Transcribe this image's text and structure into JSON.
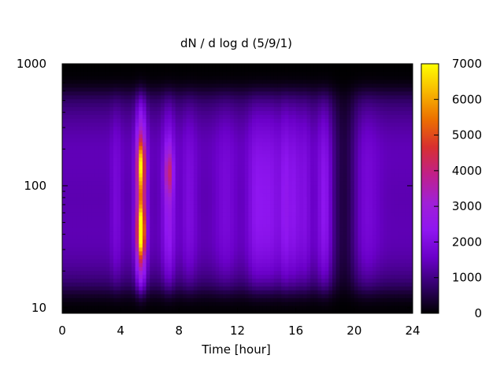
{
  "chart_data": {
    "type": "heatmap",
    "title": "dN / d log d (5/9/1)",
    "xlabel": "Time [hour]",
    "ylabel": "",
    "x_range": [
      0,
      24
    ],
    "y_range": [
      9,
      1000
    ],
    "y_scale": "log",
    "x_ticks": [
      0,
      4,
      8,
      12,
      16,
      20,
      24
    ],
    "x_tick_labels": [
      "0",
      "4",
      "8",
      "12",
      "16",
      "20",
      "24"
    ],
    "y_ticks": [
      10,
      100,
      1000
    ],
    "y_tick_labels": [
      "10",
      "100",
      "1000"
    ],
    "colorbar": {
      "range": [
        0,
        7000
      ],
      "ticks": [
        0,
        1000,
        2000,
        3000,
        4000,
        5000,
        6000,
        7000
      ],
      "tick_labels": [
        "0",
        "1000",
        "2000",
        "3000",
        "4000",
        "5000",
        "6000",
        "7000"
      ],
      "palette": [
        "#000000",
        "#33006b",
        "#6a00c8",
        "#8f16f0",
        "#a020d6",
        "#c0208a",
        "#d83030",
        "#ec7000",
        "#f8b800",
        "#ffff00"
      ]
    },
    "grid": false,
    "features": {
      "background_level": 500,
      "size_modes": [
        {
          "diameter": 25,
          "width_decades": 0.22,
          "amplitude": 400
        },
        {
          "diameter": 55,
          "width_decades": 0.3,
          "amplitude": 650
        },
        {
          "diameter": 220,
          "width_decades": 0.3,
          "amplitude": 800
        }
      ],
      "event_columns": [
        {
          "time": 3.7,
          "width_hours": 0.25,
          "amplitude": 500
        },
        {
          "time": 5.4,
          "width_hours": 0.25,
          "amplitude": 3200
        },
        {
          "time": 7.3,
          "width_hours": 0.3,
          "amplitude": 1200
        },
        {
          "time": 8.7,
          "width_hours": 0.35,
          "amplitude": 600
        },
        {
          "time": 11.2,
          "width_hours": 0.5,
          "amplitude": 500
        },
        {
          "time": 13.2,
          "width_hours": 0.4,
          "amplitude": 700
        },
        {
          "time": 14.2,
          "width_hours": 0.6,
          "amplitude": 900
        },
        {
          "time": 15.3,
          "width_hours": 0.25,
          "amplitude": 900
        },
        {
          "time": 15.9,
          "width_hours": 0.25,
          "amplitude": 800
        },
        {
          "time": 16.6,
          "width_hours": 0.3,
          "amplitude": 700
        },
        {
          "time": 18.0,
          "width_hours": 0.35,
          "amplitude": 1100
        },
        {
          "time": 20.8,
          "width_hours": 0.6,
          "amplitude": 500
        }
      ],
      "hotspots": [
        {
          "time": 5.4,
          "diameter": 150,
          "value": 4300
        },
        {
          "time": 5.4,
          "diameter": 42,
          "value": 5300
        },
        {
          "time": 7.3,
          "diameter": 130,
          "value": 3300
        }
      ],
      "low_gap": {
        "time": 19.3,
        "width_hours": 0.6
      }
    }
  }
}
